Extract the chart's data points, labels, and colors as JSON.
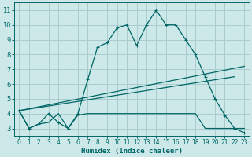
{
  "xlabel": "Humidex (Indice chaleur)",
  "bg_color": "#cce8e8",
  "grid_color": "#aacccc",
  "line_color": "#006666",
  "xlim": [
    -0.5,
    23.5
  ],
  "ylim": [
    2.5,
    11.5
  ],
  "xticks": [
    0,
    1,
    2,
    3,
    4,
    5,
    6,
    7,
    8,
    9,
    10,
    11,
    12,
    13,
    14,
    15,
    16,
    17,
    18,
    19,
    20,
    21,
    22,
    23
  ],
  "yticks": [
    3,
    4,
    5,
    6,
    7,
    8,
    9,
    10,
    11
  ],
  "series1_x": [
    0,
    1,
    2,
    3,
    4,
    5,
    6,
    7,
    8,
    9,
    10,
    11,
    12,
    13,
    14,
    15,
    16,
    17,
    18,
    19,
    20,
    21,
    22,
    23
  ],
  "series1_y": [
    4.2,
    3.0,
    3.3,
    4.0,
    3.4,
    3.0,
    4.0,
    6.3,
    8.5,
    8.8,
    9.8,
    10.0,
    8.6,
    10.0,
    11.0,
    10.0,
    10.0,
    9.0,
    8.0,
    6.5,
    5.0,
    3.9,
    3.0,
    2.7
  ],
  "series2_x": [
    0,
    1,
    2,
    3,
    4,
    5,
    6,
    7,
    8,
    9,
    10,
    11,
    12,
    13,
    14,
    15,
    16,
    17,
    18,
    19,
    20,
    21,
    22,
    23
  ],
  "series2_y": [
    4.2,
    3.0,
    3.3,
    3.4,
    4.0,
    3.0,
    3.9,
    4.0,
    4.0,
    4.0,
    4.0,
    4.0,
    4.0,
    4.0,
    4.0,
    4.0,
    4.0,
    4.0,
    4.0,
    3.0,
    3.0,
    3.0,
    3.0,
    3.0
  ],
  "series3_x": [
    0,
    23
  ],
  "series3_y": [
    4.2,
    7.2
  ],
  "series4_x": [
    0,
    22
  ],
  "series4_y": [
    4.2,
    6.5
  ]
}
